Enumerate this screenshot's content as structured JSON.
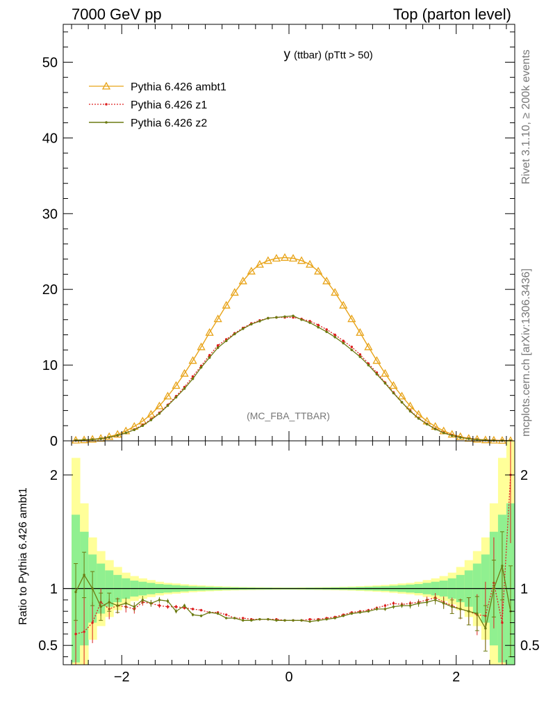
{
  "header": {
    "left": "7000 GeV pp",
    "right": "Top (parton level)"
  },
  "side_labels": {
    "rivet": "Rivet 3.1.10, ≥ 200k events",
    "mcplots": "mcplots.cern.ch [arXiv:1306.3436]"
  },
  "colors": {
    "ambt1": "#e8a317",
    "z1": "#dd1e1e",
    "z2": "#6b7a10",
    "band_inner": "#90f090",
    "band_outer": "#ffff99"
  },
  "chart_data": [
    {
      "type": "line",
      "title": "y (ttbar) (pTtt > 50)",
      "title_main": "y",
      "title_sub": "(ttbar) (pTtt > 50)",
      "annotation": "(MC_FBA_TTBAR)",
      "xlabel": "",
      "ylabel": "",
      "xlim": [
        -2.7,
        2.7
      ],
      "ylim": [
        0,
        55
      ],
      "y_ticks": [
        0,
        10,
        20,
        30,
        40,
        50
      ],
      "x_ticks": [
        -2,
        0,
        2
      ],
      "legend_position": "top-left",
      "x": [
        -2.55,
        -2.45,
        -2.35,
        -2.25,
        -2.15,
        -2.05,
        -1.95,
        -1.85,
        -1.75,
        -1.65,
        -1.55,
        -1.45,
        -1.35,
        -1.25,
        -1.15,
        -1.05,
        -0.95,
        -0.85,
        -0.75,
        -0.65,
        -0.55,
        -0.45,
        -0.35,
        -0.25,
        -0.15,
        -0.05,
        0.05,
        0.15,
        0.25,
        0.35,
        0.45,
        0.55,
        0.65,
        0.75,
        0.85,
        0.95,
        1.05,
        1.15,
        1.25,
        1.35,
        1.45,
        1.55,
        1.65,
        1.75,
        1.85,
        1.95,
        2.05,
        2.15,
        2.25,
        2.35,
        2.45,
        2.55,
        2.65
      ],
      "series": [
        {
          "name": "Pythia 6.426 ambt1",
          "marker": "triangle",
          "values": [
            0.08,
            0.12,
            0.2,
            0.32,
            0.55,
            0.85,
            1.3,
            1.9,
            2.6,
            3.5,
            4.6,
            5.9,
            7.3,
            8.9,
            10.6,
            12.4,
            14.3,
            16.1,
            17.9,
            19.6,
            21.1,
            22.4,
            23.3,
            23.8,
            24.1,
            24.2,
            24.1,
            23.8,
            23.3,
            22.4,
            21.1,
            19.6,
            17.9,
            16.1,
            14.3,
            12.4,
            10.6,
            8.9,
            7.3,
            5.9,
            4.6,
            3.5,
            2.6,
            1.9,
            1.3,
            0.85,
            0.55,
            0.32,
            0.2,
            0.12,
            0.08,
            0.05,
            0.03
          ]
        },
        {
          "name": "Pythia 6.426 z1",
          "marker": "dot",
          "values": [
            0.05,
            0.1,
            0.18,
            0.28,
            0.45,
            0.7,
            1.05,
            1.5,
            2.1,
            2.85,
            3.7,
            4.75,
            5.9,
            7.1,
            8.5,
            9.9,
            11.3,
            12.6,
            13.4,
            14.2,
            14.9,
            15.5,
            15.9,
            16.2,
            16.3,
            16.3,
            16.3,
            16.1,
            15.8,
            15.3,
            14.7,
            14.0,
            13.2,
            12.4,
            11.4,
            10.2,
            9.0,
            7.7,
            6.4,
            5.1,
            4.0,
            3.0,
            2.25,
            1.6,
            1.1,
            0.75,
            0.48,
            0.3,
            0.18,
            0.1,
            0.06,
            0.04,
            0.02
          ]
        },
        {
          "name": "Pythia 6.426 z2",
          "marker": "dot",
          "values": [
            0.07,
            0.13,
            0.18,
            0.28,
            0.47,
            0.72,
            1.05,
            1.45,
            2.0,
            2.75,
            3.6,
            4.65,
            5.75,
            6.9,
            8.2,
            9.7,
            11.0,
            12.3,
            13.2,
            14.1,
            14.8,
            15.4,
            15.8,
            16.2,
            16.3,
            16.4,
            16.5,
            16.0,
            15.6,
            15.0,
            14.4,
            13.7,
            12.9,
            12.0,
            11.1,
            10.0,
            8.8,
            7.6,
            6.3,
            5.1,
            3.9,
            2.95,
            2.2,
            1.55,
            1.05,
            0.7,
            0.45,
            0.28,
            0.16,
            0.09,
            0.05,
            0.03,
            0.02
          ]
        }
      ]
    },
    {
      "type": "line",
      "title": "",
      "xlabel": "",
      "ylabel": "Ratio to Pythia 6.426 ambt1",
      "xlim": [
        -2.7,
        2.7
      ],
      "ylim": [
        0.33,
        2.3
      ],
      "y_ticks": [
        0.5,
        1,
        2
      ],
      "y_tick_labels": [
        "0.5",
        "1",
        "2"
      ],
      "x_ticks": [
        -2,
        0,
        2
      ],
      "x_tick_labels": [
        "−2",
        "0",
        "2"
      ],
      "reference_line": 1,
      "x": [
        -2.55,
        -2.45,
        -2.35,
        -2.25,
        -2.15,
        -2.05,
        -1.95,
        -1.85,
        -1.75,
        -1.65,
        -1.55,
        -1.45,
        -1.35,
        -1.25,
        -1.15,
        -1.05,
        -0.95,
        -0.85,
        -0.75,
        -0.65,
        -0.55,
        -0.45,
        -0.35,
        -0.25,
        -0.15,
        -0.05,
        0.05,
        0.15,
        0.25,
        0.35,
        0.45,
        0.55,
        0.65,
        0.75,
        0.85,
        0.95,
        1.05,
        1.15,
        1.25,
        1.35,
        1.45,
        1.55,
        1.65,
        1.75,
        1.85,
        1.95,
        2.05,
        2.15,
        2.25,
        2.35,
        2.45,
        2.55,
        2.65
      ],
      "band_inner_halfwidth": [
        0.65,
        0.5,
        0.3,
        0.22,
        0.16,
        0.12,
        0.09,
        0.07,
        0.06,
        0.05,
        0.04,
        0.035,
        0.03,
        0.025,
        0.02,
        0.018,
        0.016,
        0.014,
        0.012,
        0.011,
        0.01,
        0.009,
        0.008,
        0.008,
        0.007,
        0.007,
        0.007,
        0.007,
        0.008,
        0.008,
        0.009,
        0.01,
        0.011,
        0.012,
        0.014,
        0.016,
        0.018,
        0.02,
        0.025,
        0.03,
        0.035,
        0.04,
        0.05,
        0.06,
        0.07,
        0.09,
        0.12,
        0.16,
        0.22,
        0.3,
        0.5,
        0.65,
        0.75
      ],
      "band_outer_halfwidth": [
        1.15,
        0.75,
        0.45,
        0.33,
        0.25,
        0.19,
        0.14,
        0.11,
        0.09,
        0.075,
        0.06,
        0.05,
        0.045,
        0.038,
        0.032,
        0.028,
        0.024,
        0.021,
        0.018,
        0.016,
        0.014,
        0.013,
        0.012,
        0.011,
        0.011,
        0.01,
        0.01,
        0.011,
        0.011,
        0.012,
        0.013,
        0.014,
        0.016,
        0.018,
        0.021,
        0.024,
        0.028,
        0.032,
        0.038,
        0.045,
        0.05,
        0.06,
        0.075,
        0.09,
        0.11,
        0.14,
        0.19,
        0.25,
        0.33,
        0.45,
        0.75,
        1.15,
        1.3
      ],
      "series": [
        {
          "name": "Pythia 6.426 z1",
          "values": [
            0.6,
            0.62,
            0.7,
            0.88,
            0.82,
            0.85,
            0.84,
            0.82,
            0.88,
            0.87,
            0.85,
            0.84,
            0.84,
            0.83,
            0.82,
            0.81,
            0.79,
            0.79,
            0.77,
            0.74,
            0.74,
            0.73,
            0.73,
            0.73,
            0.73,
            0.72,
            0.72,
            0.72,
            0.73,
            0.73,
            0.74,
            0.75,
            0.77,
            0.79,
            0.8,
            0.81,
            0.83,
            0.85,
            0.87,
            0.86,
            0.87,
            0.88,
            0.9,
            0.92,
            0.88,
            0.85,
            0.82,
            0.8,
            0.77,
            0.76,
            1.05,
            0.7,
            2.0
          ],
          "errors": [
            0.4,
            0.3,
            0.18,
            0.12,
            0.09,
            0.07,
            0.05,
            0.04,
            0.03,
            0.025,
            0.02,
            0.018,
            0.016,
            0.014,
            0.012,
            0.011,
            0.01,
            0.009,
            0.008,
            0.008,
            0.007,
            0.007,
            0.007,
            0.007,
            0.007,
            0.007,
            0.007,
            0.007,
            0.007,
            0.007,
            0.007,
            0.008,
            0.008,
            0.009,
            0.01,
            0.011,
            0.012,
            0.014,
            0.016,
            0.018,
            0.02,
            0.025,
            0.03,
            0.04,
            0.05,
            0.07,
            0.09,
            0.12,
            0.18,
            0.3,
            0.4,
            0.5,
            0.6
          ]
        },
        {
          "name": "Pythia 6.426 z2",
          "values": [
            0.97,
            1.12,
            1.0,
            0.84,
            0.88,
            0.85,
            0.87,
            0.84,
            0.9,
            0.87,
            0.9,
            0.89,
            0.8,
            0.85,
            0.77,
            0.76,
            0.79,
            0.78,
            0.74,
            0.74,
            0.72,
            0.72,
            0.73,
            0.73,
            0.72,
            0.72,
            0.72,
            0.72,
            0.71,
            0.72,
            0.73,
            0.74,
            0.76,
            0.78,
            0.79,
            0.8,
            0.82,
            0.82,
            0.84,
            0.85,
            0.85,
            0.87,
            0.88,
            0.9,
            0.87,
            0.84,
            0.82,
            0.8,
            0.78,
            0.65,
            1.0,
            1.2,
            0.8
          ],
          "errors": [
            0.25,
            0.2,
            0.15,
            0.12,
            0.08,
            0.06,
            0.05,
            0.04,
            0.035,
            0.03,
            0.025,
            0.02,
            0.018,
            0.016,
            0.014,
            0.012,
            0.011,
            0.01,
            0.009,
            0.008,
            0.008,
            0.008,
            0.008,
            0.008,
            0.008,
            0.008,
            0.008,
            0.008,
            0.008,
            0.008,
            0.008,
            0.008,
            0.009,
            0.01,
            0.011,
            0.012,
            0.014,
            0.016,
            0.018,
            0.02,
            0.025,
            0.03,
            0.035,
            0.04,
            0.05,
            0.06,
            0.08,
            0.12,
            0.15,
            0.2,
            0.25,
            0.3,
            0.4
          ]
        }
      ]
    }
  ]
}
